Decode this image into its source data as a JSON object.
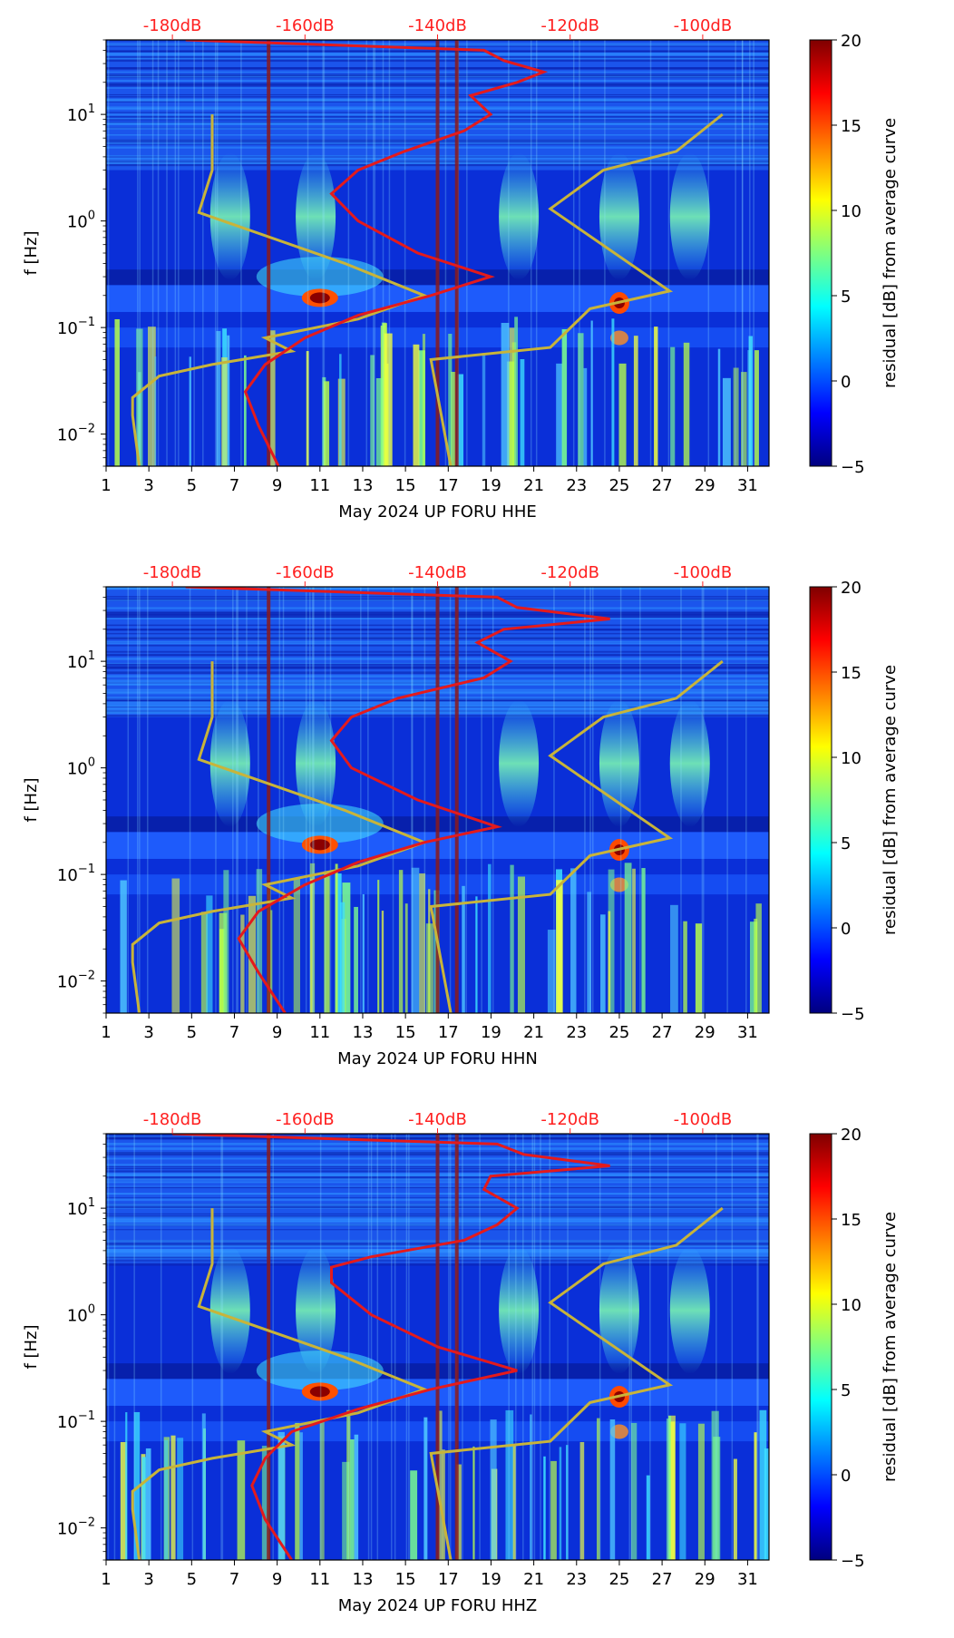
{
  "colors": {
    "db_label": "#ff2020",
    "average_curve": "#e41a1c",
    "noise_model": "#c8b43a",
    "day_marker": "#8b1a1a"
  },
  "colorbar": {
    "label": "residual [dB] from average curve",
    "ticks": [
      "20",
      "15",
      "10",
      "5",
      "0",
      "−5"
    ],
    "range": [
      -5,
      20
    ],
    "stops": [
      "#00007f",
      "#0000ff",
      "#007fff",
      "#00ffff",
      "#7fff7f",
      "#ffff00",
      "#ff7f00",
      "#ff0000",
      "#7f0000"
    ]
  },
  "chart_data": [
    {
      "type": "heatmap",
      "channel": "HHE",
      "xlabel": "May 2024 UP FORU  HHE",
      "ylabel": "f [Hz]",
      "x_ticks": [
        "1",
        "3",
        "5",
        "7",
        "9",
        "11",
        "13",
        "15",
        "17",
        "19",
        "21",
        "23",
        "25",
        "27",
        "29",
        "31"
      ],
      "xlim": [
        1,
        32
      ],
      "ylim": [
        0.005,
        50
      ],
      "y_tick_labels": [
        {
          "base": "10",
          "exp": "1",
          "value": 10
        },
        {
          "base": "10",
          "exp": "0",
          "value": 1
        },
        {
          "base": "10",
          "exp": "−1",
          "value": 0.1
        },
        {
          "base": "10",
          "exp": "−2",
          "value": 0.01
        }
      ],
      "db_axis_labels": [
        "-180dB",
        "-160dB",
        "-140dB",
        "-120dB",
        "-100dB"
      ],
      "db_axis_values": [
        -180,
        -160,
        -140,
        -120,
        -100
      ],
      "db_range": [
        -190,
        -90
      ],
      "average_curve_db": [
        [
          -164,
          0.005
        ],
        [
          -167,
          0.012
        ],
        [
          -169,
          0.025
        ],
        [
          -166,
          0.045
        ],
        [
          -160,
          0.08
        ],
        [
          -152,
          0.13
        ],
        [
          -141,
          0.2
        ],
        [
          -132,
          0.3
        ],
        [
          -143,
          0.5
        ],
        [
          -152,
          1.0
        ],
        [
          -156,
          1.8
        ],
        [
          -152,
          3.0
        ],
        [
          -145,
          4.5
        ],
        [
          -136,
          7.0
        ],
        [
          -132,
          10
        ],
        [
          -135,
          15
        ],
        [
          -128,
          20
        ],
        [
          -124,
          25
        ],
        [
          -130,
          32
        ],
        [
          -133,
          40
        ],
        [
          -178,
          50
        ]
      ],
      "noise_models_db": [
        [
          [
            -185,
            0.005
          ],
          [
            -186,
            0.015
          ],
          [
            -186,
            0.022
          ],
          [
            -182,
            0.035
          ],
          [
            -174,
            0.045
          ],
          [
            -162,
            0.06
          ],
          [
            -166,
            0.08
          ],
          [
            -152,
            0.12
          ],
          [
            -142,
            0.2
          ],
          [
            -154,
            0.4
          ],
          [
            -176,
            1.2
          ],
          [
            -174,
            3
          ],
          [
            -174,
            10
          ]
        ],
        [
          [
            -138,
            0.005
          ],
          [
            -141,
            0.05
          ],
          [
            -123,
            0.065
          ],
          [
            -117,
            0.15
          ],
          [
            -105,
            0.22
          ],
          [
            -123,
            1.3
          ],
          [
            -115,
            3.0
          ],
          [
            -104,
            4.5
          ],
          [
            -97,
            10
          ]
        ]
      ],
      "day_markers": [
        8.6,
        16.5,
        17.4
      ]
    },
    {
      "type": "heatmap",
      "channel": "HHN",
      "xlabel": "May 2024 UP FORU  HHN",
      "ylabel": "f [Hz]",
      "x_ticks": [
        "1",
        "3",
        "5",
        "7",
        "9",
        "11",
        "13",
        "15",
        "17",
        "19",
        "21",
        "23",
        "25",
        "27",
        "29",
        "31"
      ],
      "xlim": [
        1,
        32
      ],
      "ylim": [
        0.005,
        50
      ],
      "y_tick_labels": [
        {
          "base": "10",
          "exp": "1",
          "value": 10
        },
        {
          "base": "10",
          "exp": "0",
          "value": 1
        },
        {
          "base": "10",
          "exp": "−1",
          "value": 0.1
        },
        {
          "base": "10",
          "exp": "−2",
          "value": 0.01
        }
      ],
      "db_axis_labels": [
        "-180dB",
        "-160dB",
        "-140dB",
        "-120dB",
        "-100dB"
      ],
      "db_axis_values": [
        -180,
        -160,
        -140,
        -120,
        -100
      ],
      "db_range": [
        -190,
        -90
      ],
      "average_curve_db": [
        [
          -163,
          0.005
        ],
        [
          -167,
          0.012
        ],
        [
          -170,
          0.025
        ],
        [
          -167,
          0.045
        ],
        [
          -160,
          0.08
        ],
        [
          -152,
          0.13
        ],
        [
          -142,
          0.2
        ],
        [
          -131,
          0.28
        ],
        [
          -143,
          0.5
        ],
        [
          -153,
          1.0
        ],
        [
          -156,
          1.8
        ],
        [
          -153,
          3.0
        ],
        [
          -146,
          4.5
        ],
        [
          -133,
          7.0
        ],
        [
          -129,
          10
        ],
        [
          -134,
          15
        ],
        [
          -130,
          20
        ],
        [
          -114,
          25
        ],
        [
          -128,
          32
        ],
        [
          -131,
          40
        ],
        [
          -178,
          50
        ]
      ],
      "noise_models_db": [
        [
          [
            -185,
            0.005
          ],
          [
            -186,
            0.015
          ],
          [
            -186,
            0.022
          ],
          [
            -182,
            0.035
          ],
          [
            -174,
            0.045
          ],
          [
            -162,
            0.06
          ],
          [
            -166,
            0.08
          ],
          [
            -152,
            0.12
          ],
          [
            -142,
            0.2
          ],
          [
            -154,
            0.4
          ],
          [
            -176,
            1.2
          ],
          [
            -174,
            3
          ],
          [
            -174,
            10
          ]
        ],
        [
          [
            -138,
            0.005
          ],
          [
            -141,
            0.05
          ],
          [
            -123,
            0.065
          ],
          [
            -117,
            0.15
          ],
          [
            -105,
            0.22
          ],
          [
            -123,
            1.3
          ],
          [
            -115,
            3.0
          ],
          [
            -104,
            4.5
          ],
          [
            -97,
            10
          ]
        ]
      ],
      "day_markers": [
        8.6,
        16.5,
        17.4
      ]
    },
    {
      "type": "heatmap",
      "channel": "HHZ",
      "xlabel": "May 2024 UP FORU  HHZ",
      "ylabel": "f [Hz]",
      "x_ticks": [
        "1",
        "3",
        "5",
        "7",
        "9",
        "11",
        "13",
        "15",
        "17",
        "19",
        "21",
        "23",
        "25",
        "27",
        "29",
        "31"
      ],
      "xlim": [
        1,
        32
      ],
      "ylim": [
        0.005,
        50
      ],
      "y_tick_labels": [
        {
          "base": "10",
          "exp": "1",
          "value": 10
        },
        {
          "base": "10",
          "exp": "0",
          "value": 1
        },
        {
          "base": "10",
          "exp": "−1",
          "value": 0.1
        },
        {
          "base": "10",
          "exp": "−2",
          "value": 0.01
        }
      ],
      "db_axis_labels": [
        "-180dB",
        "-160dB",
        "-140dB",
        "-120dB",
        "-100dB"
      ],
      "db_axis_values": [
        -180,
        -160,
        -140,
        -120,
        -100
      ],
      "db_range": [
        -190,
        -90
      ],
      "average_curve_db": [
        [
          -162,
          0.005
        ],
        [
          -166,
          0.012
        ],
        [
          -168,
          0.025
        ],
        [
          -166,
          0.045
        ],
        [
          -162,
          0.08
        ],
        [
          -152,
          0.13
        ],
        [
          -141,
          0.2
        ],
        [
          -128,
          0.3
        ],
        [
          -140,
          0.5
        ],
        [
          -150,
          1.0
        ],
        [
          -156,
          2.0
        ],
        [
          -156,
          2.8
        ],
        [
          -150,
          3.5
        ],
        [
          -136,
          5.0
        ],
        [
          -131,
          7.0
        ],
        [
          -128,
          10
        ],
        [
          -133,
          15
        ],
        [
          -132,
          20
        ],
        [
          -114,
          25
        ],
        [
          -127,
          32
        ],
        [
          -131,
          40
        ],
        [
          -180,
          50
        ]
      ],
      "noise_models_db": [
        [
          [
            -185,
            0.005
          ],
          [
            -186,
            0.015
          ],
          [
            -186,
            0.022
          ],
          [
            -182,
            0.035
          ],
          [
            -174,
            0.045
          ],
          [
            -162,
            0.06
          ],
          [
            -166,
            0.08
          ],
          [
            -152,
            0.12
          ],
          [
            -142,
            0.2
          ],
          [
            -154,
            0.4
          ],
          [
            -176,
            1.2
          ],
          [
            -174,
            3
          ],
          [
            -174,
            10
          ]
        ],
        [
          [
            -138,
            0.005
          ],
          [
            -141,
            0.05
          ],
          [
            -123,
            0.065
          ],
          [
            -117,
            0.15
          ],
          [
            -105,
            0.22
          ],
          [
            -123,
            1.3
          ],
          [
            -115,
            3.0
          ],
          [
            -104,
            4.5
          ],
          [
            -97,
            10
          ]
        ]
      ],
      "day_markers": [
        8.6,
        16.5,
        17.4
      ]
    }
  ]
}
